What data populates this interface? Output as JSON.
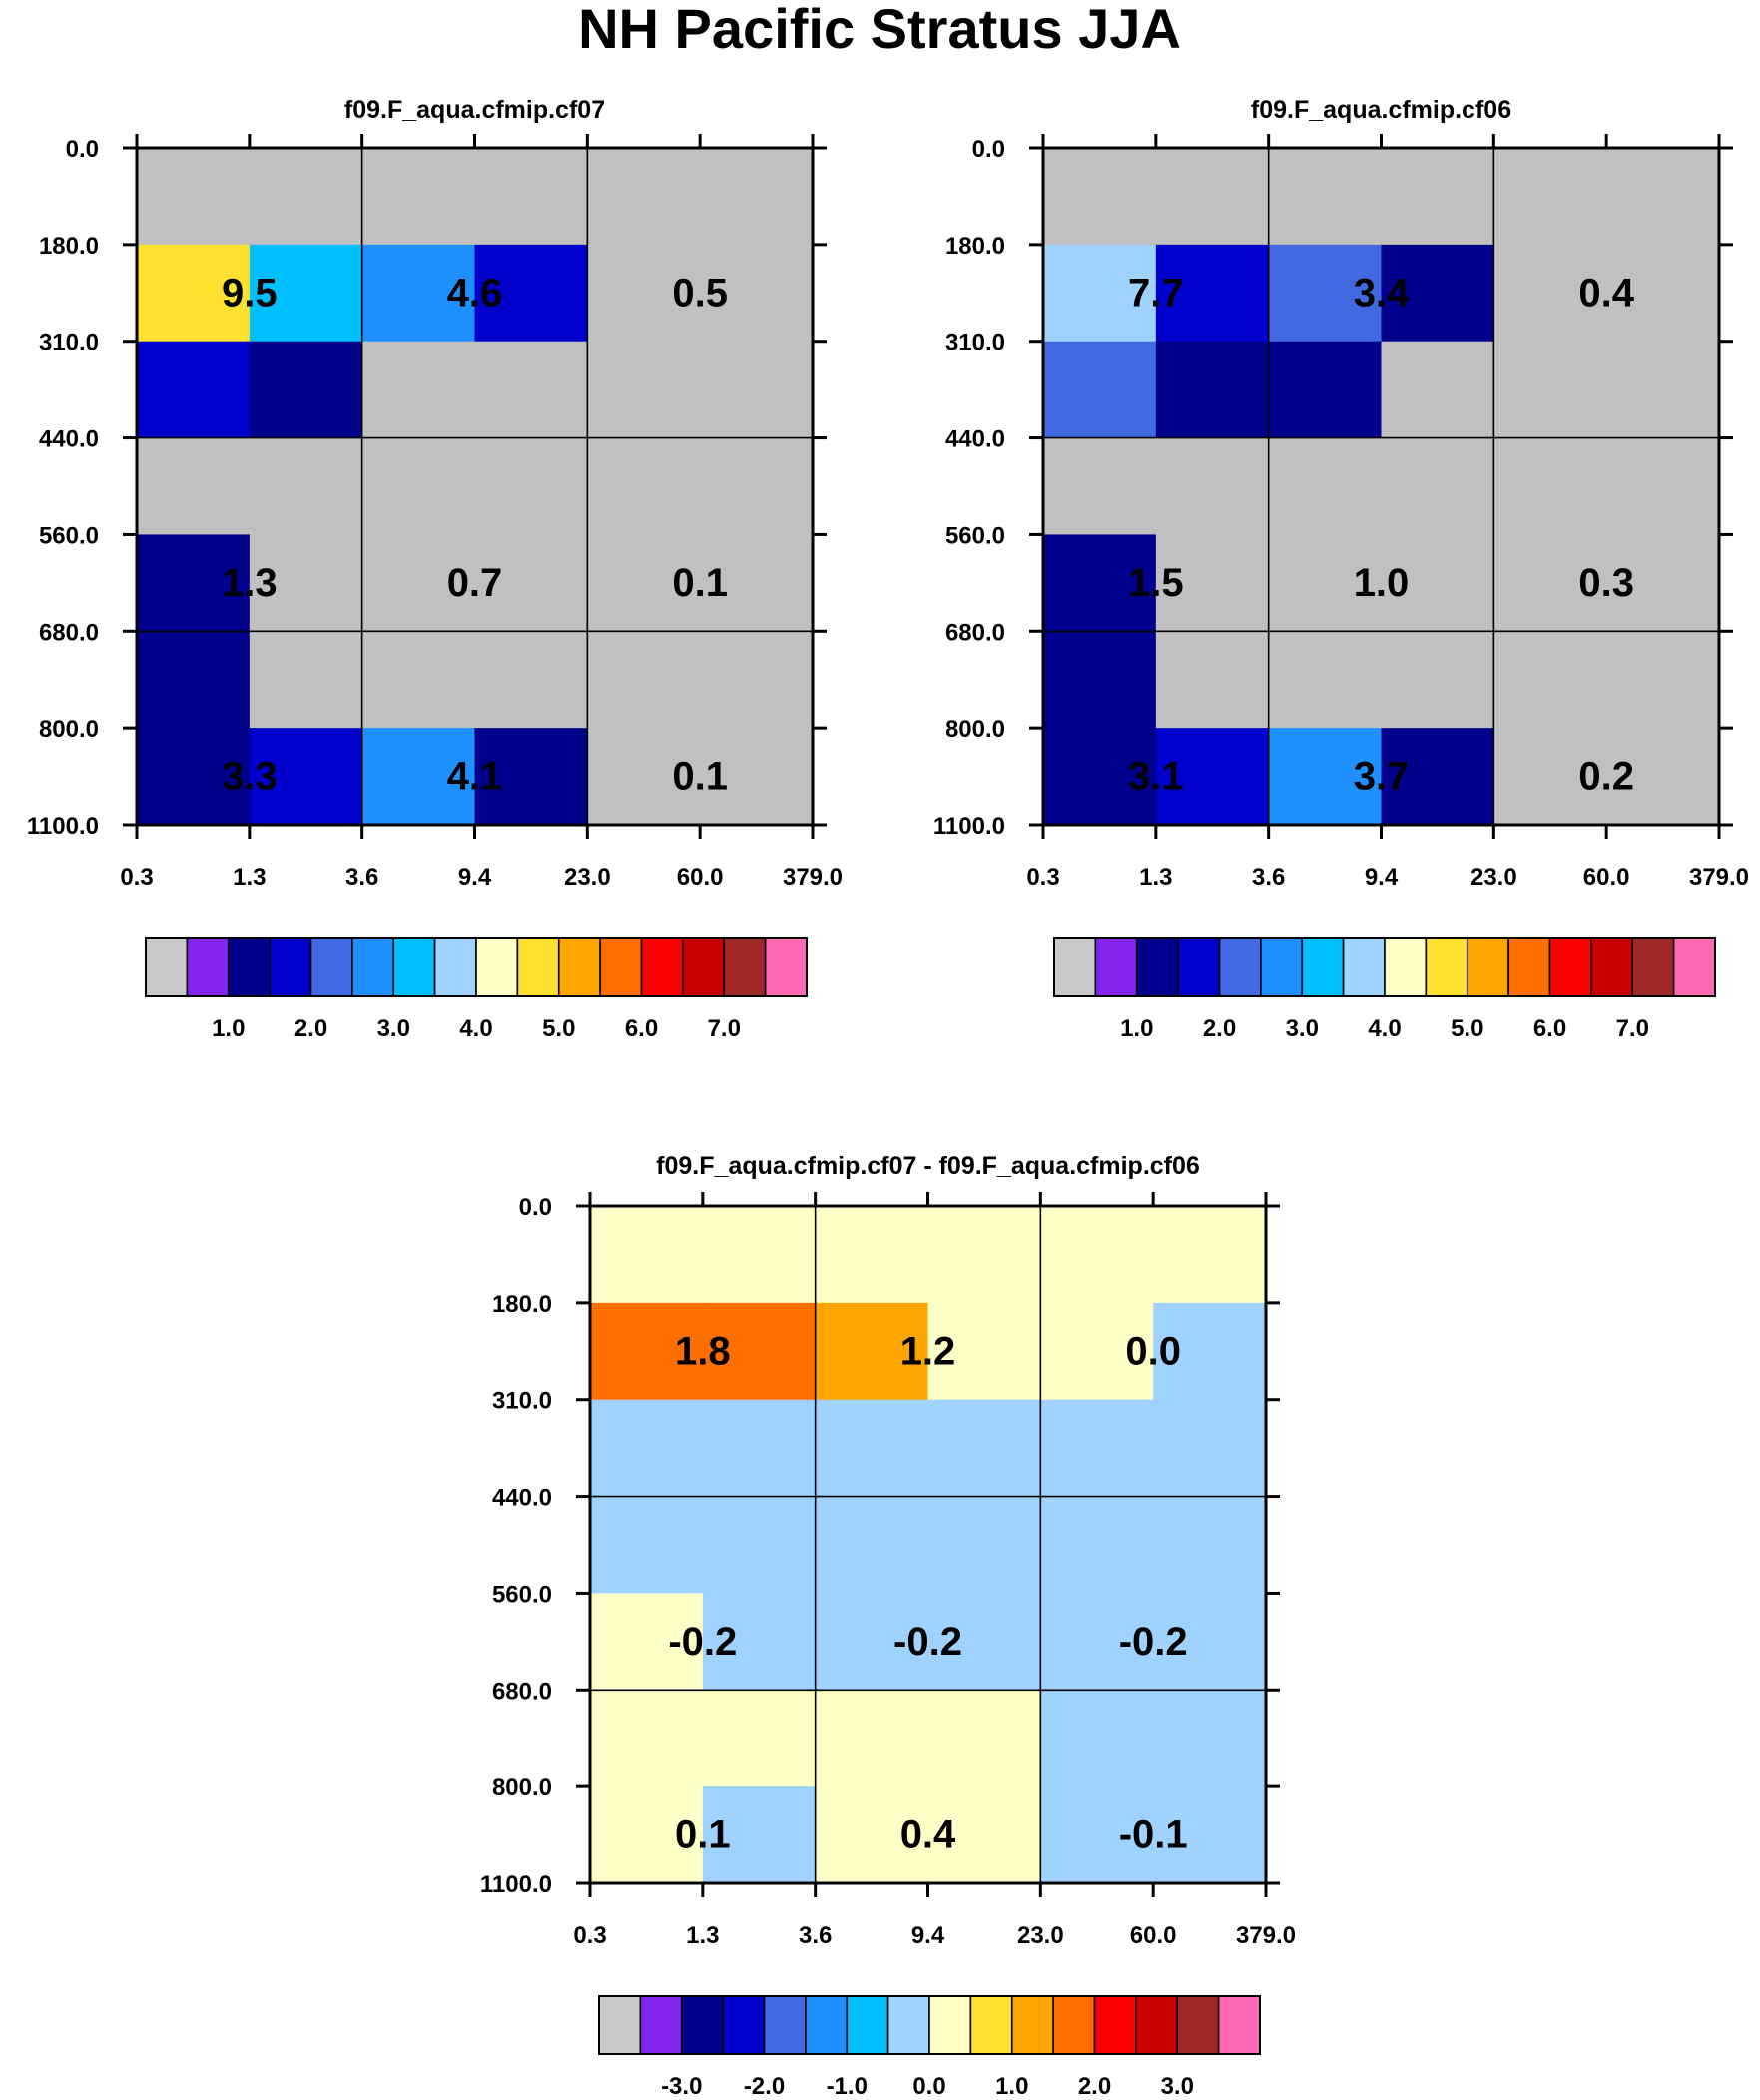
{
  "title": "NH Pacific Stratus JJA",
  "chart_data": [
    {
      "type": "heatmap",
      "title": "f09.F_aqua.cfmip.cf07",
      "x_ticks": [
        "0.3",
        "1.3",
        "3.6",
        "9.4",
        "23.0",
        "60.0",
        "379.0"
      ],
      "y_ticks": [
        "0.0",
        "180.0",
        "310.0",
        "440.0",
        "560.0",
        "680.0",
        "800.0",
        "1100.0"
      ],
      "grid_values": [
        [
          0,
          0,
          0,
          0,
          0,
          0
        ],
        [
          4.3,
          2.8,
          2.3,
          1.3,
          0,
          0
        ],
        [
          1.3,
          0.7,
          0,
          0,
          0,
          0
        ],
        [
          0,
          0,
          0,
          0,
          0,
          0
        ],
        [
          0.7,
          0,
          0,
          0,
          0,
          0
        ],
        [
          0.7,
          0,
          0,
          0,
          0,
          0
        ],
        [
          0.7,
          1.3,
          2.3,
          0.7,
          0,
          0
        ]
      ],
      "block_labels": [
        {
          "text": "9.5",
          "col": 1,
          "row": 1
        },
        {
          "text": "4.6",
          "col": 3,
          "row": 1
        },
        {
          "text": "0.5",
          "col": 5,
          "row": 1
        },
        {
          "text": "1.3",
          "col": 1,
          "row": 4
        },
        {
          "text": "0.7",
          "col": 3,
          "row": 4
        },
        {
          "text": "0.1",
          "col": 5,
          "row": 4
        },
        {
          "text": "3.3",
          "col": 1,
          "row": 6
        },
        {
          "text": "4.1",
          "col": 3,
          "row": 6
        },
        {
          "text": "0.1",
          "col": 5,
          "row": 6
        }
      ],
      "colorbar_labels": [
        "1.0",
        "2.0",
        "3.0",
        "4.0",
        "5.0",
        "6.0",
        "7.0"
      ]
    },
    {
      "type": "heatmap",
      "title": "f09.F_aqua.cfmip.cf06",
      "x_ticks": [
        "0.3",
        "1.3",
        "3.6",
        "9.4",
        "23.0",
        "60.0",
        "379.0"
      ],
      "y_ticks": [
        "0.0",
        "180.0",
        "310.0",
        "440.0",
        "560.0",
        "680.0",
        "800.0",
        "1100.0"
      ],
      "grid_values": [
        [
          0,
          0,
          0,
          0,
          0,
          0
        ],
        [
          3.3,
          1.3,
          1.7,
          0.7,
          0,
          0
        ],
        [
          1.7,
          0.7,
          0.7,
          0,
          0,
          0
        ],
        [
          0,
          0,
          0,
          0,
          0,
          0
        ],
        [
          0.7,
          0,
          0,
          0,
          0,
          0
        ],
        [
          0.7,
          0,
          0,
          0,
          0,
          0
        ],
        [
          0.7,
          1.3,
          2.3,
          0.7,
          0,
          0
        ]
      ],
      "block_labels": [
        {
          "text": "7.7",
          "col": 1,
          "row": 1
        },
        {
          "text": "3.4",
          "col": 3,
          "row": 1
        },
        {
          "text": "0.4",
          "col": 5,
          "row": 1
        },
        {
          "text": "1.5",
          "col": 1,
          "row": 4
        },
        {
          "text": "1.0",
          "col": 3,
          "row": 4
        },
        {
          "text": "0.3",
          "col": 5,
          "row": 4
        },
        {
          "text": "3.1",
          "col": 1,
          "row": 6
        },
        {
          "text": "3.7",
          "col": 3,
          "row": 6
        },
        {
          "text": "0.2",
          "col": 5,
          "row": 6
        }
      ],
      "colorbar_labels": [
        "1.0",
        "2.0",
        "3.0",
        "4.0",
        "5.0",
        "6.0",
        "7.0"
      ]
    },
    {
      "type": "heatmap",
      "title": "f09.F_aqua.cfmip.cf07 - f09.F_aqua.cfmip.cf06",
      "x_ticks": [
        "0.3",
        "1.3",
        "3.6",
        "9.4",
        "23.0",
        "60.0",
        "379.0"
      ],
      "y_ticks": [
        "0.0",
        "180.0",
        "310.0",
        "440.0",
        "560.0",
        "680.0",
        "800.0",
        "1100.0"
      ],
      "grid_values": [
        [
          0.2,
          0.2,
          0.2,
          0.2,
          0.2,
          0.2
        ],
        [
          1.8,
          1.8,
          1.2,
          0.2,
          0.2,
          -0.2
        ],
        [
          -0.2,
          -0.2,
          -0.2,
          -0.2,
          -0.2,
          -0.2
        ],
        [
          -0.2,
          -0.2,
          -0.2,
          -0.2,
          -0.2,
          -0.2
        ],
        [
          0.2,
          -0.2,
          -0.2,
          -0.2,
          -0.2,
          -0.2
        ],
        [
          0.2,
          0.2,
          0.2,
          0.2,
          -0.2,
          -0.2
        ],
        [
          0.2,
          -0.2,
          0.2,
          0.2,
          -0.2,
          -0.2
        ]
      ],
      "block_labels": [
        {
          "text": "1.8",
          "col": 1,
          "row": 1
        },
        {
          "text": "1.2",
          "col": 3,
          "row": 1
        },
        {
          "text": "0.0",
          "col": 5,
          "row": 1
        },
        {
          "text": "-0.2",
          "col": 1,
          "row": 4
        },
        {
          "text": "-0.2",
          "col": 3,
          "row": 4
        },
        {
          "text": "-0.2",
          "col": 5,
          "row": 4
        },
        {
          "text": "0.1",
          "col": 1,
          "row": 6
        },
        {
          "text": "0.4",
          "col": 3,
          "row": 6
        },
        {
          "text": "-0.1",
          "col": 5,
          "row": 6
        }
      ],
      "colorbar_labels": [
        "-3.0",
        "-2.0",
        "-1.0",
        "0.0",
        "1.0",
        "2.0",
        "3.0"
      ]
    }
  ],
  "colors": {
    "palette": [
      "#c0c0c0",
      "#8224ee",
      "#00008c",
      "#0000cd",
      "#4169e1",
      "#1e90ff",
      "#00bfff",
      "#a0d2ff",
      "#ffffc8",
      "#ffe130",
      "#ffa500",
      "#ff6e00",
      "#ff0000",
      "#c80000",
      "#a02828",
      "#ff69b4"
    ],
    "colorbar_swatch_gray": "#c8c8c8",
    "seq_bounds": [
      0.5,
      1.0,
      1.5,
      2.0,
      2.5,
      3.0,
      3.5,
      4.0,
      4.5,
      5.0,
      5.5,
      6.0,
      6.5,
      7.0
    ],
    "diff_bounds": [
      -3.0,
      -2.5,
      -2.0,
      -1.5,
      -1.0,
      -0.5,
      0.0,
      0.5,
      1.0,
      1.5,
      2.0,
      2.5,
      3.0
    ]
  }
}
